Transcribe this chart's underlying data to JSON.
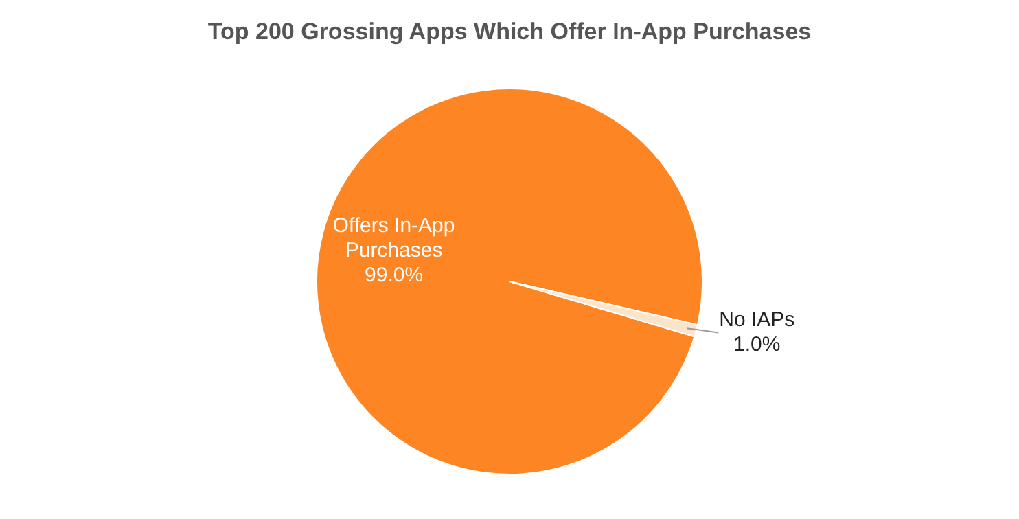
{
  "chart_data": {
    "type": "pie",
    "title": "Top 200 Grossing Apps Which Offer In-App Purchases",
    "categories": [
      "Offers In-App Purchases",
      "No IAPs"
    ],
    "values": [
      99.0,
      1.0
    ],
    "colors": [
      "#fd8523",
      "#fce4cb"
    ],
    "value_labels": [
      "99.0%",
      "1.0%"
    ],
    "legend": false
  }
}
